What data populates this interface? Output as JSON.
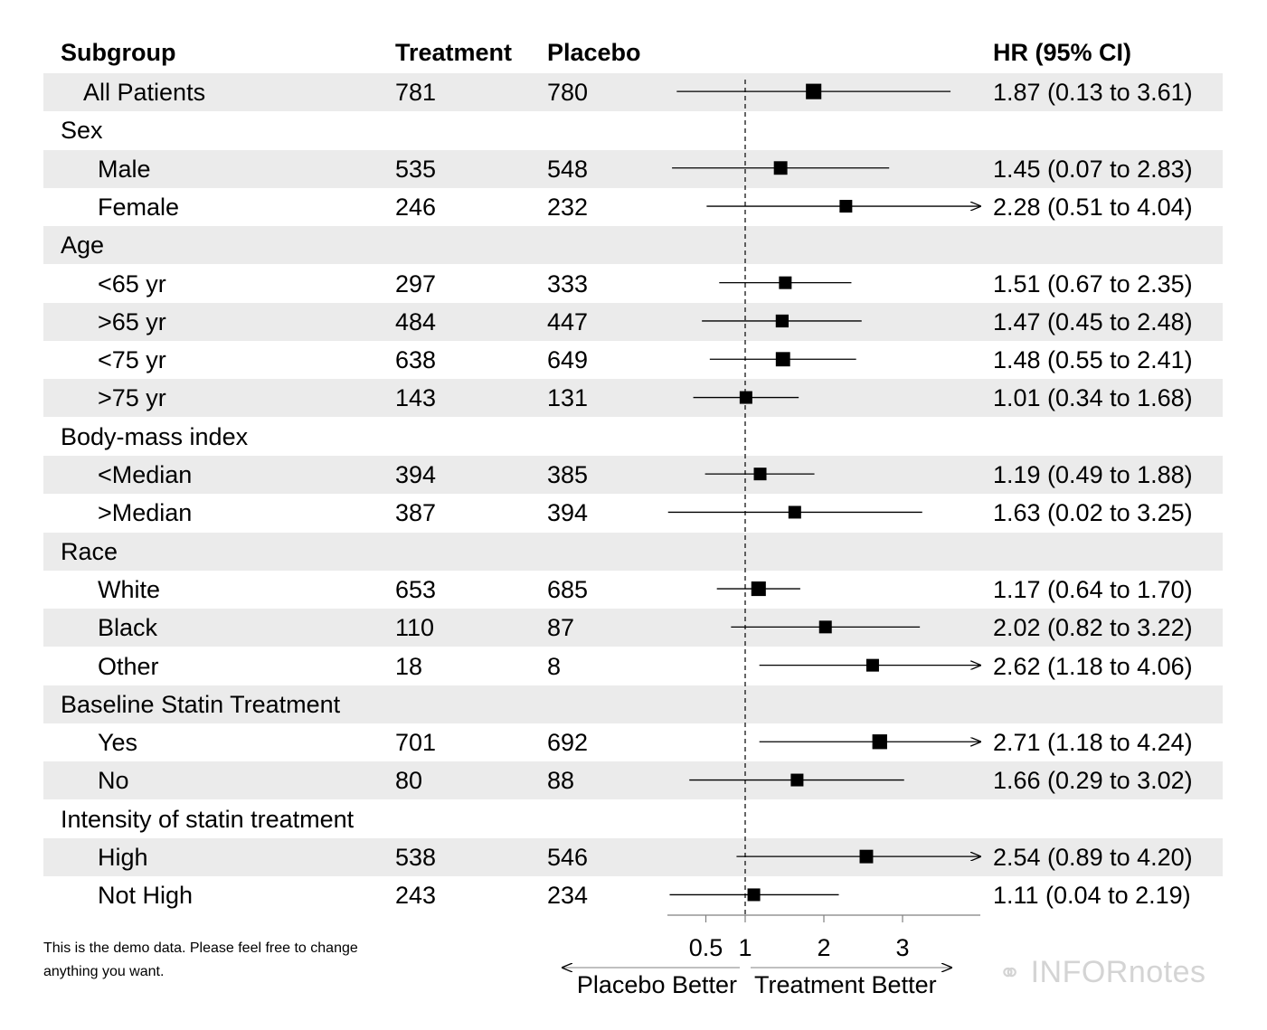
{
  "header": {
    "subgroup": "Subgroup",
    "treatment": "Treatment",
    "placebo": "Placebo",
    "hr": "HR (95% CI)"
  },
  "note": "This is the demo data. Please feel free to change anything you want.",
  "watermark": "INFORnotes",
  "colors": {
    "band": "#ebebeb",
    "marker": "#000000",
    "reference_line": "#000000",
    "axis": "#808080"
  },
  "chart_data": {
    "type": "forest",
    "title": "",
    "x_axis": {
      "ticks": [
        0.5,
        1,
        2,
        3
      ],
      "tick_labels": [
        "0.5",
        "1",
        "2",
        "3"
      ],
      "reference_line": 1,
      "direction_labels": {
        "left": "Placebo Better",
        "right": "Treatment Better"
      }
    },
    "rows": [
      {
        "label": "All Patients",
        "indent": 1,
        "treatment": "781",
        "placebo": "780",
        "hr": 1.87,
        "lo": 0.13,
        "hi": 3.61,
        "ci_text": "1.87 (0.13 to 3.61)",
        "arrow": false,
        "shaded": true
      },
      {
        "label": "Sex",
        "indent": 0,
        "shaded": false
      },
      {
        "label": "Male",
        "indent": 2,
        "treatment": "535",
        "placebo": "548",
        "hr": 1.45,
        "lo": 0.07,
        "hi": 2.83,
        "ci_text": "1.45 (0.07 to 2.83)",
        "arrow": false,
        "shaded": true
      },
      {
        "label": "Female",
        "indent": 2,
        "treatment": "246",
        "placebo": "232",
        "hr": 2.28,
        "lo": 0.51,
        "hi": 4.04,
        "ci_text": "2.28 (0.51 to 4.04)",
        "arrow": true,
        "shaded": false
      },
      {
        "label": "Age",
        "indent": 0,
        "shaded": true
      },
      {
        "label": "<65 yr",
        "indent": 2,
        "treatment": "297",
        "placebo": "333",
        "hr": 1.51,
        "lo": 0.67,
        "hi": 2.35,
        "ci_text": "1.51 (0.67 to 2.35)",
        "arrow": false,
        "shaded": false
      },
      {
        "label": ">65 yr",
        "indent": 2,
        "treatment": "484",
        "placebo": "447",
        "hr": 1.47,
        "lo": 0.45,
        "hi": 2.48,
        "ci_text": "1.47 (0.45 to 2.48)",
        "arrow": false,
        "shaded": true
      },
      {
        "label": "<75 yr",
        "indent": 2,
        "treatment": "638",
        "placebo": "649",
        "hr": 1.48,
        "lo": 0.55,
        "hi": 2.41,
        "ci_text": "1.48 (0.55 to 2.41)",
        "arrow": false,
        "shaded": false
      },
      {
        "label": ">75 yr",
        "indent": 2,
        "treatment": "143",
        "placebo": "131",
        "hr": 1.01,
        "lo": 0.34,
        "hi": 1.68,
        "ci_text": "1.01 (0.34 to 1.68)",
        "arrow": false,
        "shaded": true
      },
      {
        "label": "Body-mass index",
        "indent": 0,
        "shaded": false
      },
      {
        "label": "<Median",
        "indent": 2,
        "treatment": "394",
        "placebo": "385",
        "hr": 1.19,
        "lo": 0.49,
        "hi": 1.88,
        "ci_text": "1.19 (0.49 to 1.88)",
        "arrow": false,
        "shaded": true
      },
      {
        "label": ">Median",
        "indent": 2,
        "treatment": "387",
        "placebo": "394",
        "hr": 1.63,
        "lo": 0.02,
        "hi": 3.25,
        "ci_text": "1.63 (0.02 to 3.25)",
        "arrow": false,
        "shaded": false
      },
      {
        "label": "Race",
        "indent": 0,
        "shaded": true
      },
      {
        "label": "White",
        "indent": 2,
        "treatment": "653",
        "placebo": "685",
        "hr": 1.17,
        "lo": 0.64,
        "hi": 1.7,
        "ci_text": "1.17 (0.64 to 1.70)",
        "arrow": false,
        "shaded": false
      },
      {
        "label": "Black",
        "indent": 2,
        "treatment": "110",
        "placebo": "87",
        "hr": 2.02,
        "lo": 0.82,
        "hi": 3.22,
        "ci_text": "2.02 (0.82 to 3.22)",
        "arrow": false,
        "shaded": true
      },
      {
        "label": "Other",
        "indent": 2,
        "treatment": "18",
        "placebo": "8",
        "hr": 2.62,
        "lo": 1.18,
        "hi": 4.06,
        "ci_text": "2.62 (1.18 to 4.06)",
        "arrow": true,
        "shaded": false
      },
      {
        "label": "Baseline Statin Treatment",
        "indent": 0,
        "shaded": true
      },
      {
        "label": "Yes",
        "indent": 2,
        "treatment": "701",
        "placebo": "692",
        "hr": 2.71,
        "lo": 1.18,
        "hi": 4.24,
        "ci_text": "2.71 (1.18 to 4.24)",
        "arrow": true,
        "shaded": false
      },
      {
        "label": "No",
        "indent": 2,
        "treatment": "80",
        "placebo": "88",
        "hr": 1.66,
        "lo": 0.29,
        "hi": 3.02,
        "ci_text": "1.66 (0.29 to 3.02)",
        "arrow": false,
        "shaded": true
      },
      {
        "label": "Intensity of statin treatment",
        "indent": 0,
        "shaded": false
      },
      {
        "label": "High",
        "indent": 2,
        "treatment": "538",
        "placebo": "546",
        "hr": 2.54,
        "lo": 0.89,
        "hi": 4.2,
        "ci_text": "2.54 (0.89 to 4.20)",
        "arrow": true,
        "shaded": true
      },
      {
        "label": "Not High",
        "indent": 2,
        "treatment": "243",
        "placebo": "234",
        "hr": 1.11,
        "lo": 0.04,
        "hi": 2.19,
        "ci_text": "1.11 (0.04 to 2.19)",
        "arrow": false,
        "shaded": false
      }
    ]
  }
}
